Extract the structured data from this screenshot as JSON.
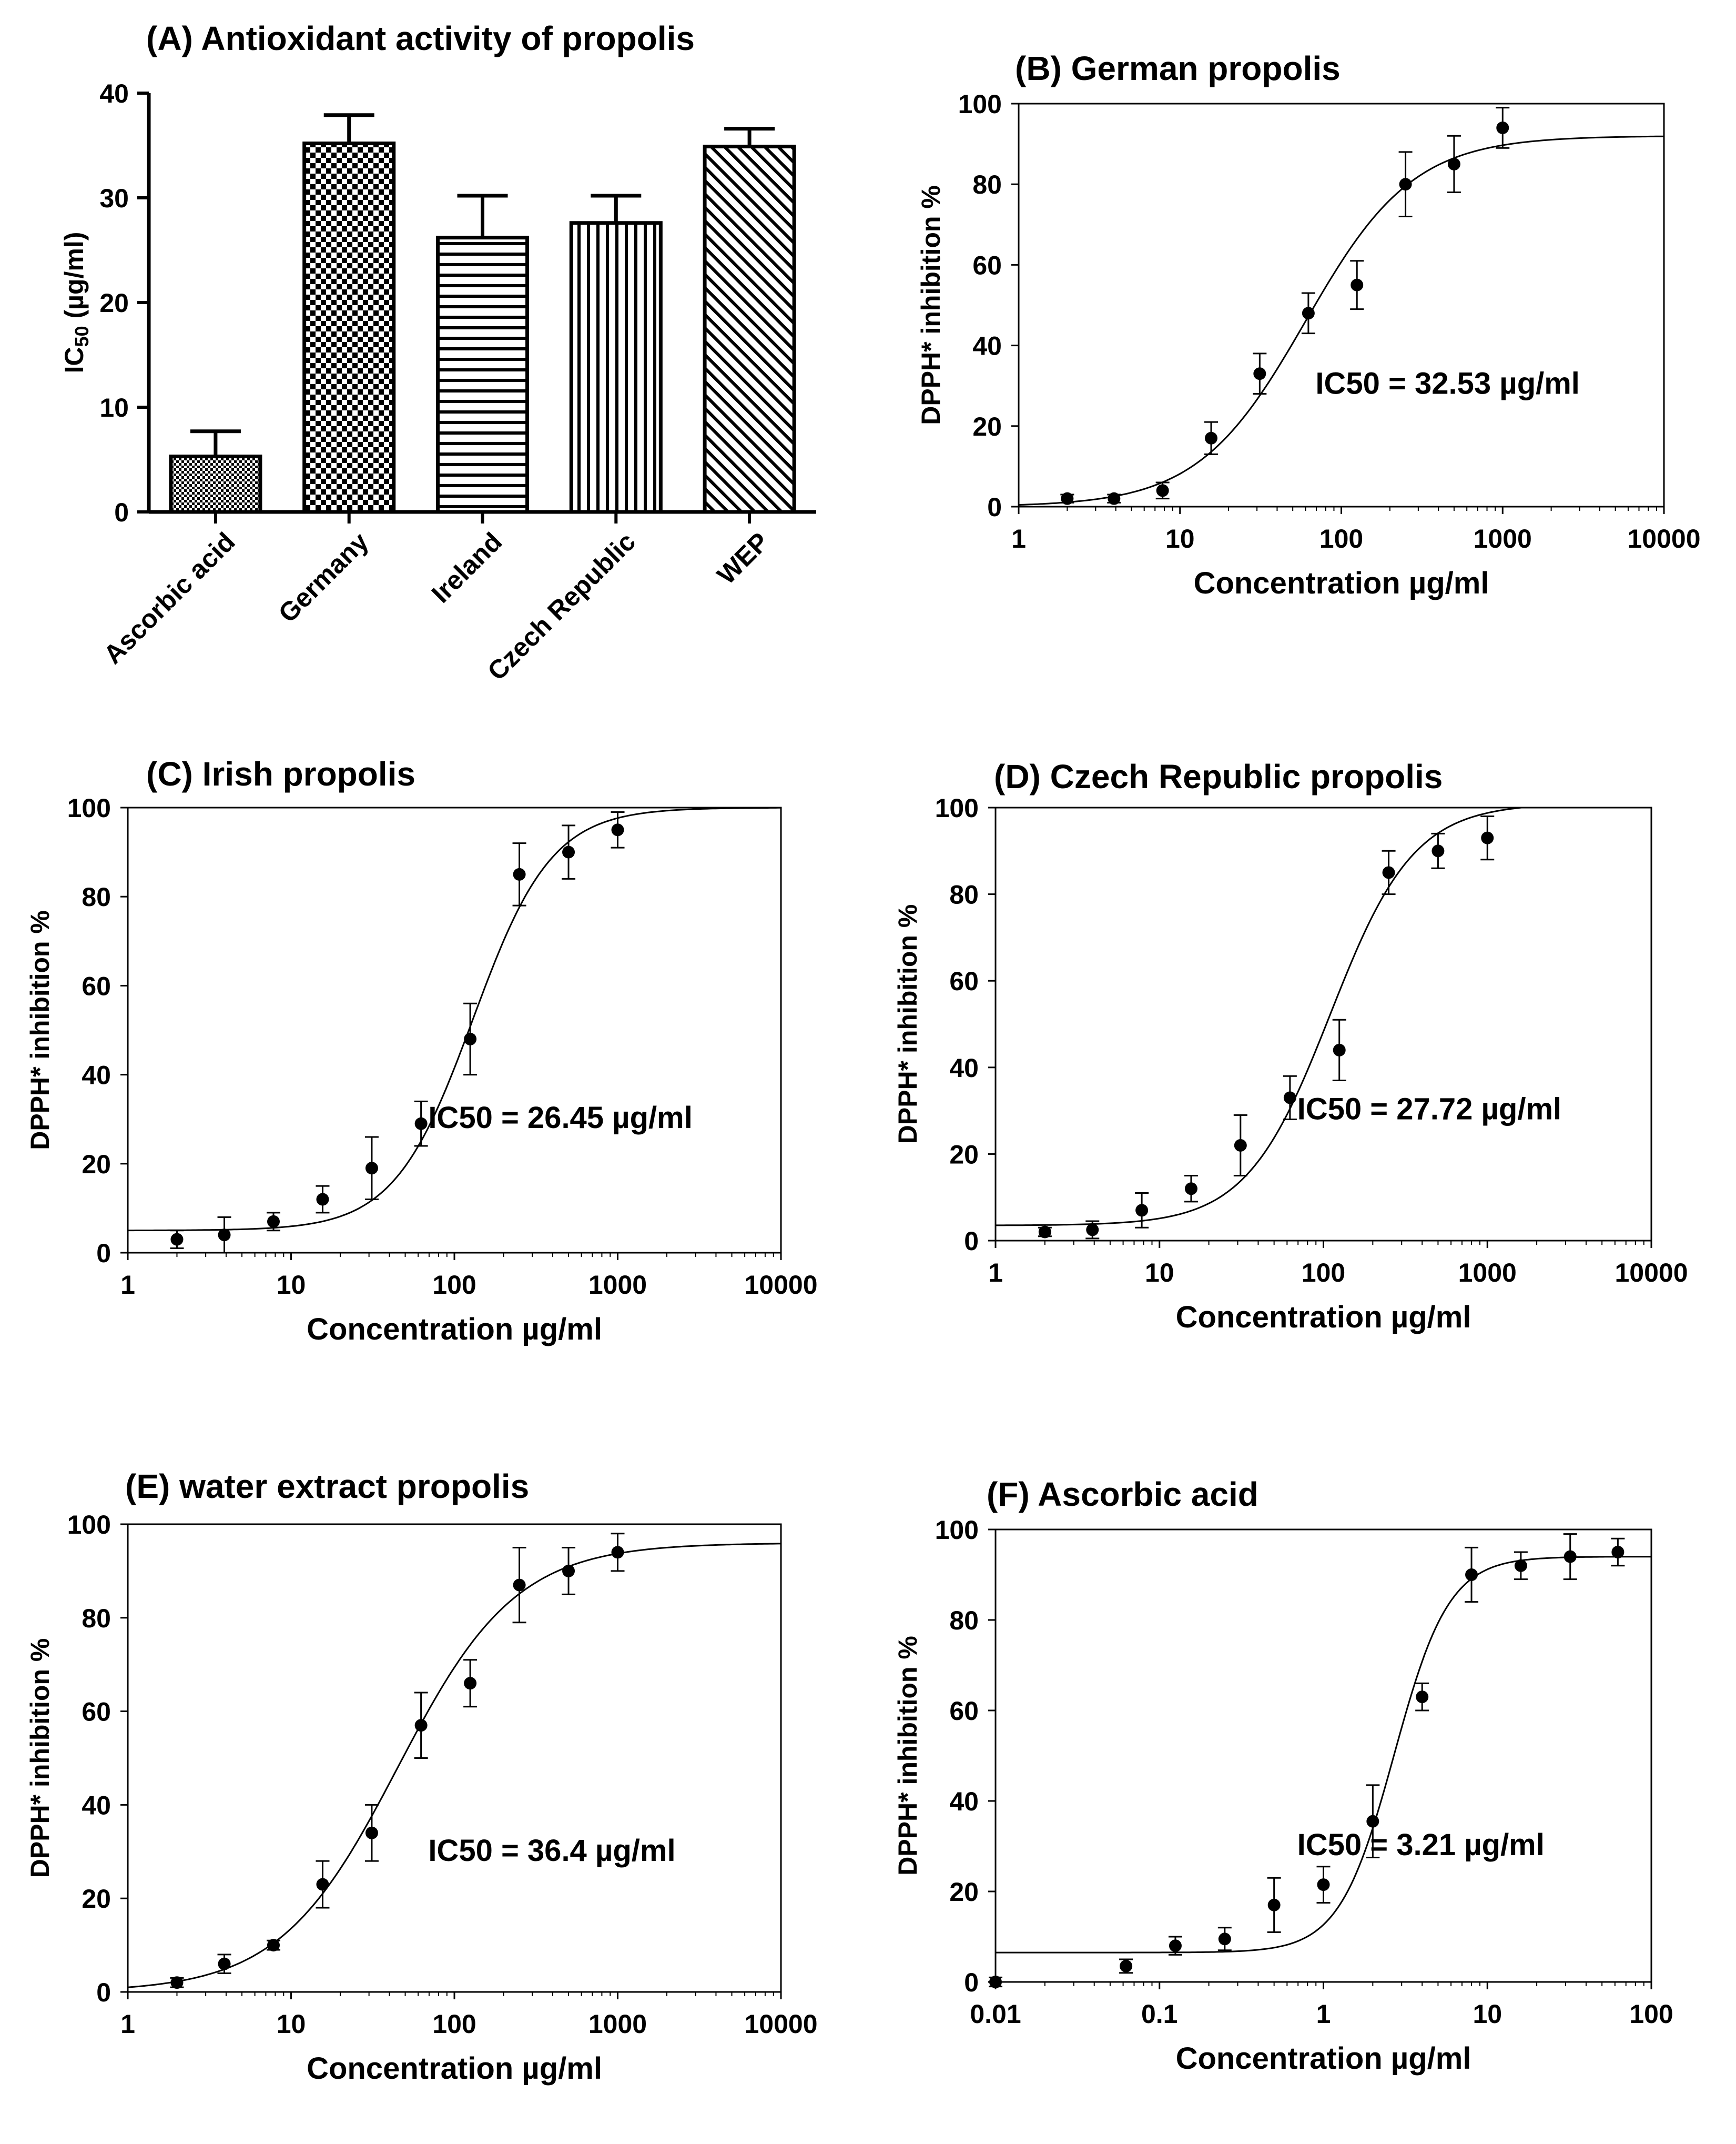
{
  "chart_data": [
    {
      "id": "A",
      "type": "bar",
      "title": "(A) Antioxidant activity of propolis",
      "ylabel_main": "IC",
      "ylabel_sub": "50",
      "ylabel_unit": " (µg/ml)",
      "xlabel": "",
      "ylim": [
        0,
        40
      ],
      "yticks": [
        0,
        10,
        20,
        30,
        40
      ],
      "categories": [
        "Ascorbic acid",
        "Germany",
        "Ireland",
        "Czech Republic",
        "WEP"
      ],
      "values": [
        5.3,
        35.2,
        26.2,
        27.6,
        34.9
      ],
      "errors": [
        2.4,
        2.7,
        4.0,
        2.6,
        1.7
      ],
      "patterns": [
        "dense-dots",
        "checker",
        "horizontal-lines",
        "vertical-lines",
        "diagonal-lines"
      ]
    },
    {
      "id": "B",
      "type": "scatter",
      "scale": "log-x",
      "title": "(B) German propolis",
      "xlabel": "Concentration µg/ml",
      "ylabel": "DPPH* inhibition %",
      "annotation": "IC50 = 32.53 µg/ml",
      "xlim": [
        1,
        10000
      ],
      "ylim": [
        0,
        100
      ],
      "xticks": [
        1,
        10,
        100,
        1000,
        10000
      ],
      "xtick_labels": [
        "1",
        "10",
        "100",
        "1000",
        "10000"
      ],
      "yticks": [
        0,
        20,
        40,
        60,
        80,
        100
      ],
      "x": [
        2,
        3.9,
        7.8,
        15.6,
        31.2,
        62.5,
        125,
        250,
        500,
        1000
      ],
      "y": [
        2,
        2,
        4,
        17,
        33,
        48,
        55,
        80,
        85,
        94
      ],
      "err": [
        1,
        1,
        2,
        4,
        5,
        5,
        6,
        8,
        7,
        5
      ],
      "fit": {
        "bottom": 0,
        "top": 92,
        "ec50": 60,
        "hill": 1.3
      }
    },
    {
      "id": "C",
      "type": "scatter",
      "scale": "log-x",
      "title": "(C) Irish  propolis",
      "xlabel": "Concentration µg/ml",
      "ylabel": "DPPH* inhibition %",
      "annotation": "IC50 = 26.45 µg/ml",
      "xlim": [
        1,
        10000
      ],
      "ylim": [
        0,
        100
      ],
      "xticks": [
        1,
        10,
        100,
        1000,
        10000
      ],
      "xtick_labels": [
        "1",
        "10",
        "100",
        "1000",
        "10000"
      ],
      "yticks": [
        0,
        20,
        40,
        60,
        80,
        100
      ],
      "x": [
        2,
        3.9,
        7.8,
        15.6,
        31.2,
        62.5,
        125,
        250,
        500,
        1000
      ],
      "y": [
        3,
        4,
        7,
        12,
        19,
        29,
        48,
        85,
        90,
        95
      ],
      "err": [
        2,
        4,
        2,
        3,
        7,
        5,
        8,
        7,
        6,
        4
      ],
      "fit": {
        "bottom": 5,
        "top": 100,
        "ec50": 130,
        "hill": 1.8
      }
    },
    {
      "id": "D",
      "type": "scatter",
      "scale": "log-x",
      "title": "(D)  Czech Republic propolis",
      "xlabel": "Concentration µg/ml",
      "ylabel": "DPPH* inhibition %",
      "annotation": "IC50 = 27.72 µg/ml",
      "xlim": [
        1,
        10000
      ],
      "ylim": [
        0,
        100
      ],
      "xticks": [
        1,
        10,
        100,
        1000,
        10000
      ],
      "xtick_labels": [
        "1",
        "10",
        "100",
        "1000",
        "10000"
      ],
      "yticks": [
        0,
        20,
        40,
        60,
        80,
        100
      ],
      "x": [
        2,
        3.9,
        7.8,
        15.6,
        31.2,
        62.5,
        125,
        250,
        500,
        1000
      ],
      "y": [
        2,
        2.5,
        7,
        12,
        22,
        33,
        44,
        85,
        90,
        93
      ],
      "err": [
        1,
        2,
        4,
        3,
        7,
        5,
        7,
        5,
        4,
        5
      ],
      "fit": {
        "bottom": 3.5,
        "top": 101,
        "ec50": 110,
        "hill": 1.7
      }
    },
    {
      "id": "E",
      "type": "scatter",
      "scale": "log-x",
      "title": "(E) water extract propolis",
      "xlabel": "Concentration µg/ml",
      "ylabel": "DPPH* inhibition %",
      "annotation": "IC50 = 36.4  µg/ml",
      "xlim": [
        1,
        10000
      ],
      "ylim": [
        0,
        100
      ],
      "xticks": [
        1,
        10,
        100,
        1000,
        10000
      ],
      "xtick_labels": [
        "1",
        "10",
        "100",
        "1000",
        "10000"
      ],
      "yticks": [
        0,
        20,
        40,
        60,
        80,
        100
      ],
      "x": [
        2,
        3.9,
        7.8,
        15.6,
        31.2,
        62.5,
        125,
        250,
        500,
        1000
      ],
      "y": [
        2,
        6,
        10,
        23,
        34,
        57,
        66,
        87,
        90,
        94
      ],
      "err": [
        1,
        2,
        1,
        5,
        6,
        7,
        5,
        8,
        5,
        4
      ],
      "fit": {
        "bottom": 0,
        "top": 96,
        "ec50": 45,
        "hill": 1.2
      }
    },
    {
      "id": "F",
      "type": "scatter",
      "scale": "log-x",
      "title": "(F)  Ascorbic acid",
      "xlabel": "Concentration µg/ml",
      "ylabel": "DPPH* inhibition %",
      "annotation": "IC50 = 3.21 µg/ml",
      "xlim": [
        0.01,
        100
      ],
      "ylim": [
        0,
        100
      ],
      "xticks": [
        0.01,
        0.1,
        1,
        10,
        100
      ],
      "xtick_labels": [
        "0.01",
        "0.1",
        "1",
        "10",
        "100"
      ],
      "yticks": [
        0,
        20,
        40,
        60,
        80,
        100
      ],
      "x": [
        0.01,
        0.0625,
        0.125,
        0.25,
        0.5,
        1,
        2,
        4,
        8,
        16,
        32,
        62.5
      ],
      "y": [
        0,
        3.5,
        8,
        9.5,
        17,
        21.5,
        35.5,
        63,
        90,
        92,
        94,
        95
      ],
      "err": [
        1,
        1.5,
        2,
        2.5,
        6,
        4,
        8,
        3,
        6,
        3,
        5,
        3
      ],
      "fit": {
        "bottom": 6.5,
        "top": 94,
        "ec50": 2.7,
        "hill": 2.6
      }
    }
  ]
}
